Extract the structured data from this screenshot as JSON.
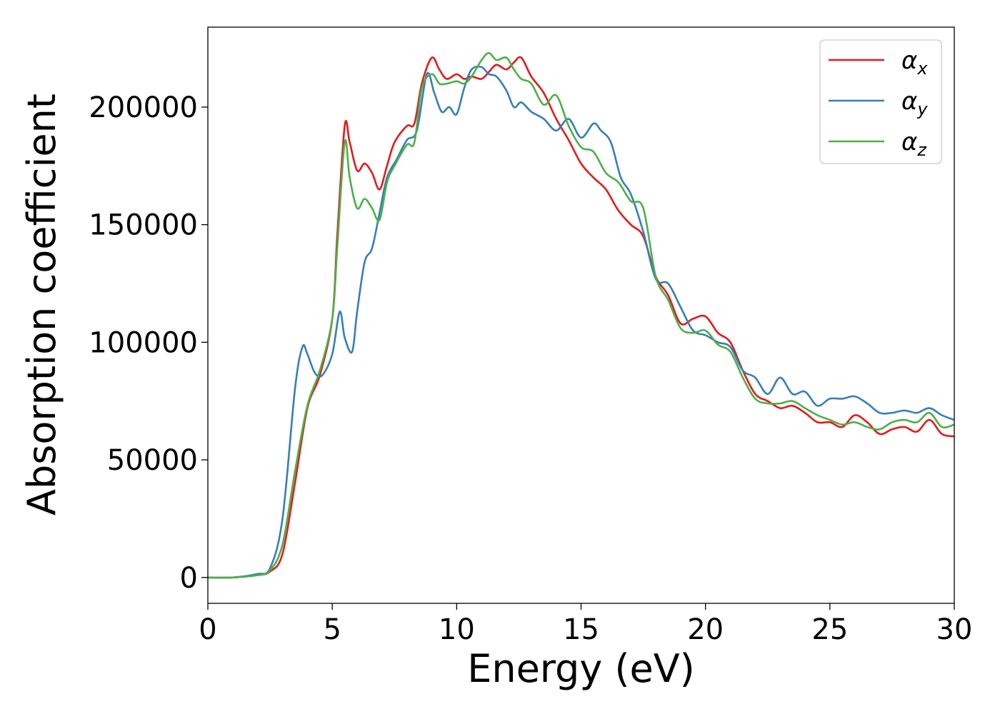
{
  "chart_data": {
    "type": "line",
    "title": "",
    "xlabel": "Energy (eV)",
    "ylabel": "Absorption coefficient",
    "xlim": [
      0,
      30
    ],
    "ylim": [
      -11000,
      234000
    ],
    "xticks": [
      0,
      5,
      10,
      15,
      20,
      25,
      30
    ],
    "xtick_labels": [
      "0",
      "5",
      "10",
      "15",
      "20",
      "25",
      "30"
    ],
    "yticks": [
      0,
      50000,
      100000,
      150000,
      200000
    ],
    "ytick_labels": [
      "0",
      "50000",
      "100000",
      "150000",
      "200000"
    ],
    "grid": false,
    "legend_position": "top-right",
    "series": [
      {
        "name": "α_x",
        "legend_base": "α",
        "legend_sub": "x",
        "color": "#e41a1c",
        "x": [
          0,
          1,
          2,
          2.5,
          3,
          3.5,
          4,
          4.5,
          5,
          5.2,
          5.5,
          5.7,
          6,
          6.3,
          6.6,
          6.9,
          7.2,
          7.5,
          8,
          8.3,
          8.6,
          9,
          9.3,
          9.6,
          10,
          10.3,
          10.6,
          11,
          11.3,
          11.6,
          12,
          12.3,
          12.6,
          13,
          13.5,
          14,
          14.5,
          15,
          15.5,
          16,
          16.5,
          17,
          17.5,
          18,
          18.5,
          19,
          19.5,
          20,
          20.5,
          21,
          21.5,
          22,
          22.5,
          23,
          23.5,
          24,
          24.5,
          25,
          25.5,
          26,
          26.5,
          27,
          27.5,
          28,
          28.5,
          29,
          29.5,
          30
        ],
        "y": [
          0,
          0,
          1000,
          2500,
          10000,
          40000,
          72000,
          86000,
          110000,
          145000,
          192000,
          185000,
          173000,
          176000,
          172000,
          165000,
          175000,
          185000,
          192000,
          193000,
          210000,
          221000,
          216000,
          212000,
          214000,
          212000,
          213000,
          212000,
          215000,
          218000,
          216000,
          219000,
          221000,
          213000,
          206000,
          195000,
          186000,
          176000,
          170000,
          165000,
          156000,
          150000,
          145000,
          128000,
          120000,
          108000,
          110000,
          111000,
          104000,
          100000,
          88000,
          78000,
          75000,
          72000,
          73000,
          70000,
          66000,
          66000,
          64000,
          69000,
          66000,
          61000,
          63000,
          64000,
          62000,
          67000,
          61000,
          60000
        ]
      },
      {
        "name": "α_y",
        "legend_base": "α",
        "legend_sub": "y",
        "color": "#377eb8",
        "x": [
          0,
          1,
          2,
          2.5,
          3,
          3.5,
          3.8,
          4,
          4.3,
          4.6,
          5,
          5.3,
          5.5,
          5.8,
          6,
          6.3,
          6.6,
          6.9,
          7.2,
          7.6,
          8,
          8.4,
          8.8,
          9.1,
          9.4,
          9.7,
          10,
          10.3,
          10.6,
          11,
          11.3,
          11.6,
          12,
          12.3,
          12.6,
          13,
          13.5,
          14,
          14.5,
          15,
          15.5,
          15.8,
          16.2,
          16.6,
          17,
          17.5,
          18,
          18.5,
          19,
          19.5,
          20,
          20.5,
          21,
          21.5,
          22,
          22.5,
          23,
          23.5,
          24,
          24.5,
          25,
          25.5,
          26,
          26.5,
          27,
          27.5,
          28,
          28.5,
          29,
          29.5,
          30
        ],
        "y": [
          0,
          0,
          1500,
          4000,
          25000,
          80000,
          98000,
          95000,
          87000,
          86000,
          95000,
          113000,
          102000,
          96000,
          113000,
          134000,
          140000,
          155000,
          170000,
          178000,
          186000,
          190000,
          214000,
          206000,
          198000,
          200000,
          197000,
          208000,
          216000,
          217000,
          214000,
          213000,
          207000,
          200000,
          202000,
          198000,
          195000,
          190000,
          195000,
          187000,
          193000,
          190000,
          185000,
          170000,
          163000,
          147000,
          127000,
          125000,
          115000,
          105000,
          103000,
          100000,
          98000,
          88000,
          85000,
          78000,
          85000,
          78000,
          79000,
          73000,
          76000,
          76000,
          77000,
          74000,
          70000,
          70000,
          71000,
          70000,
          72000,
          69000,
          67000
        ]
      },
      {
        "name": "α_z",
        "legend_base": "α",
        "legend_sub": "z",
        "color": "#4daf4a",
        "x": [
          0,
          1,
          2,
          2.5,
          3,
          3.5,
          4,
          4.5,
          5,
          5.2,
          5.5,
          5.7,
          6,
          6.3,
          6.6,
          6.9,
          7.2,
          7.5,
          8,
          8.3,
          8.6,
          9,
          9.3,
          9.6,
          10,
          10.3,
          10.6,
          11,
          11.3,
          11.6,
          12,
          12.3,
          12.6,
          13,
          13.5,
          14,
          14.5,
          15,
          15.5,
          16,
          16.5,
          17,
          17.5,
          18,
          18.5,
          19,
          19.5,
          20,
          20.5,
          21,
          21.5,
          22,
          22.5,
          23,
          23.5,
          24,
          24.5,
          25,
          25.5,
          26,
          26.5,
          27,
          27.5,
          28,
          28.5,
          29,
          29.5,
          30
        ],
        "y": [
          0,
          0,
          1000,
          3000,
          14000,
          45000,
          73000,
          88000,
          110000,
          140000,
          185000,
          170000,
          157000,
          161000,
          157000,
          152000,
          168000,
          175000,
          184000,
          185000,
          208000,
          214000,
          210000,
          210000,
          211000,
          210000,
          213000,
          220000,
          223000,
          220000,
          221000,
          216000,
          212000,
          210000,
          201000,
          205000,
          192000,
          183000,
          181000,
          172000,
          168000,
          160000,
          157000,
          128000,
          118000,
          106000,
          104000,
          105000,
          99000,
          96000,
          85000,
          76000,
          74000,
          74000,
          75000,
          72000,
          69000,
          67000,
          65000,
          66000,
          64000,
          63000,
          66000,
          67000,
          66000,
          70000,
          64000,
          65000
        ]
      }
    ]
  }
}
